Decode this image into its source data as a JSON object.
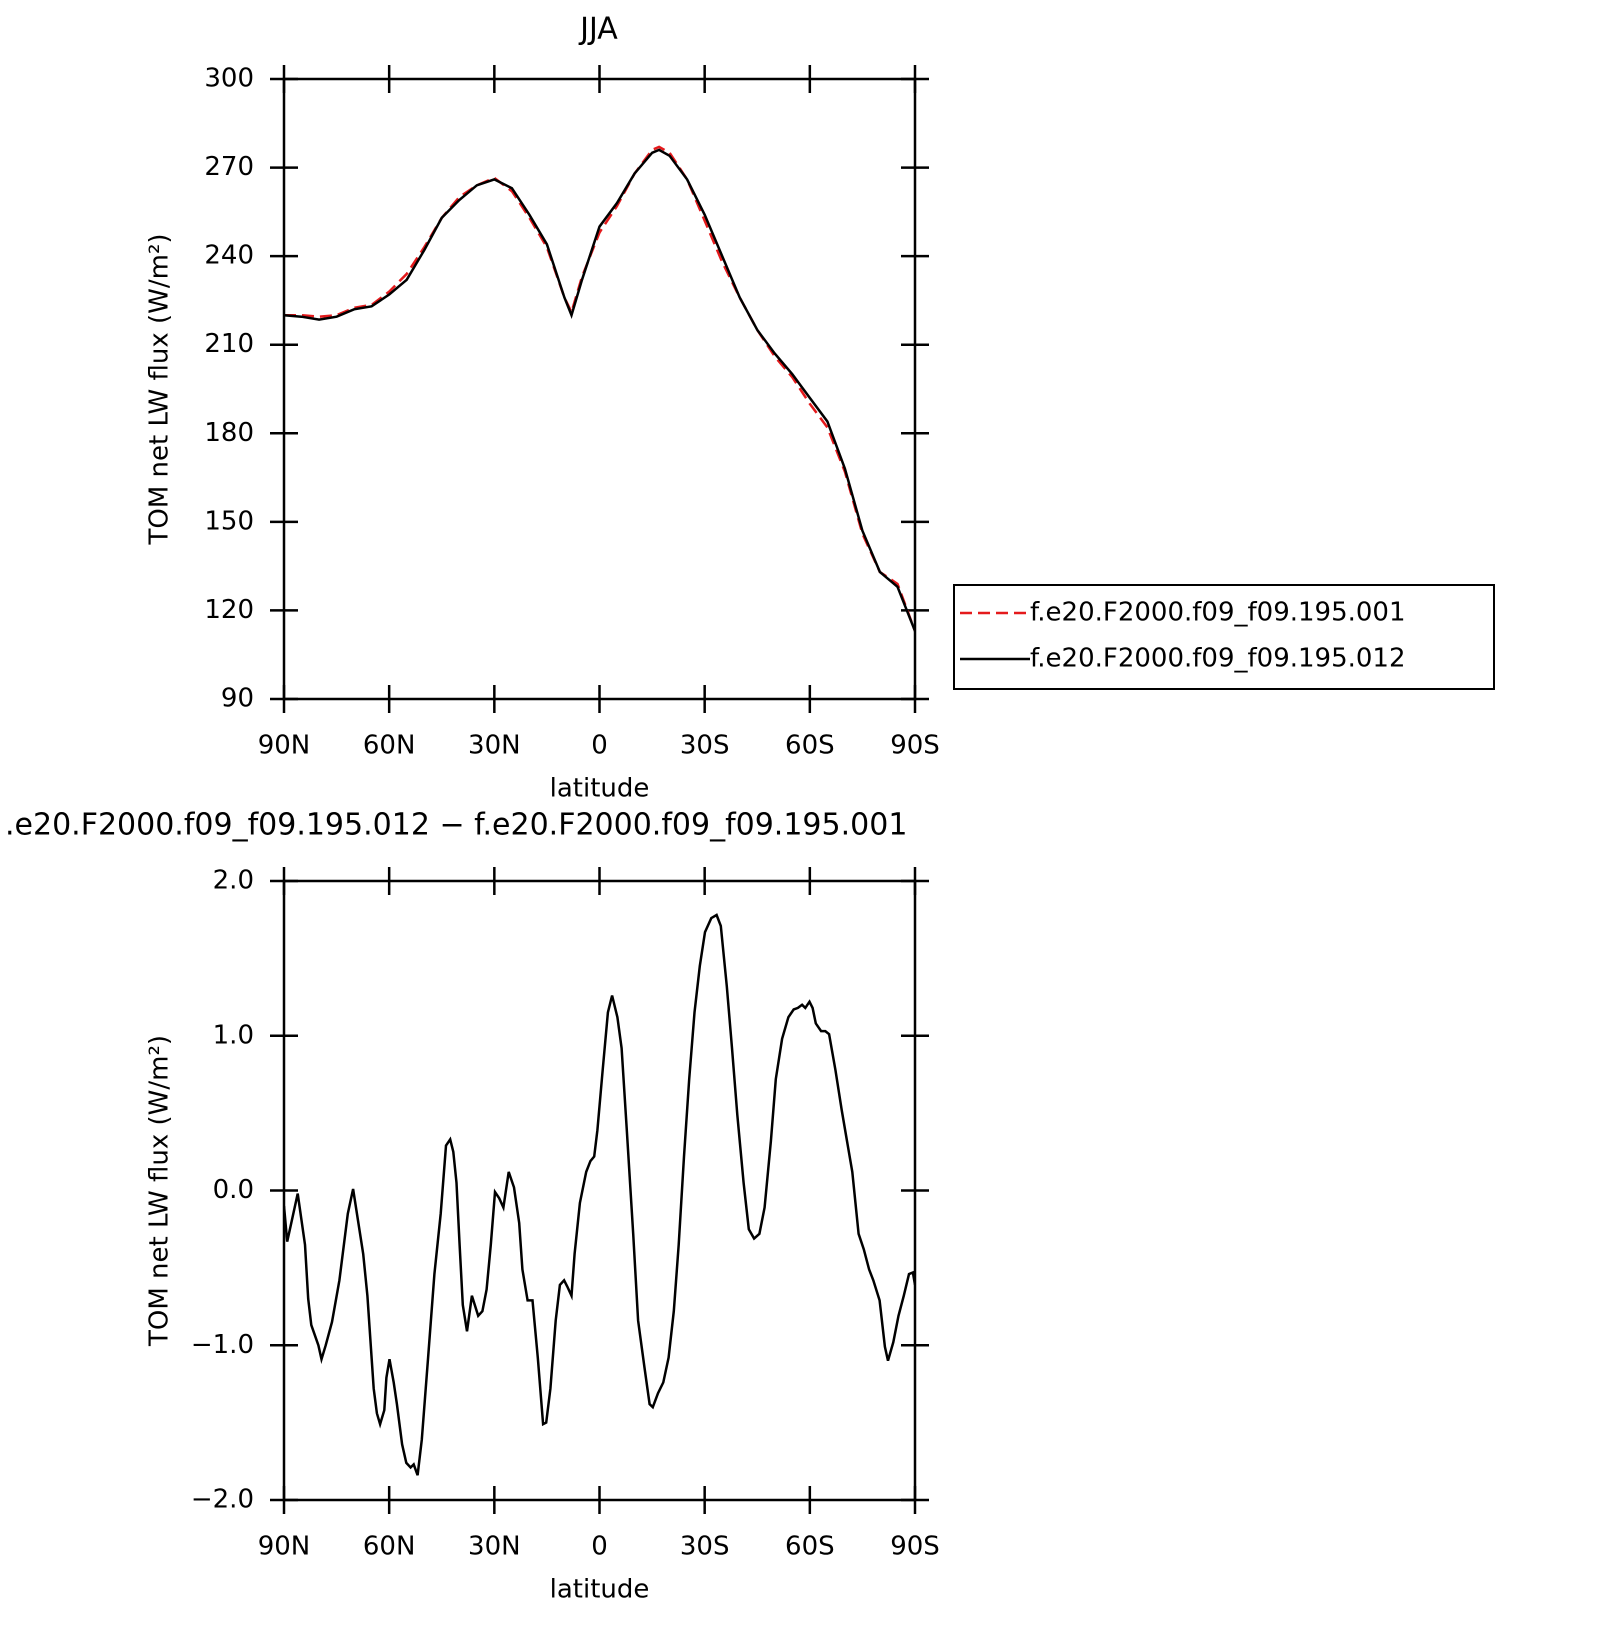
{
  "chart_data": [
    {
      "type": "line",
      "title": "JJA",
      "xlabel": "latitude",
      "ylabel": "TOM net LW flux (W/m²)",
      "x": [
        90,
        85,
        80,
        75,
        70,
        65,
        60,
        55,
        50,
        45,
        40,
        35,
        30,
        25,
        20,
        15,
        10,
        8,
        5,
        0,
        -5,
        -10,
        -15,
        -17,
        -20,
        -25,
        -30,
        -35,
        -40,
        -45,
        -50,
        -55,
        -60,
        -65,
        -70,
        -75,
        -80,
        -85,
        -90
      ],
      "series": [
        {
          "name": "f.e20.F2000.f09_f09.195.001",
          "color": "#e41a1c",
          "linestyle": "dashed",
          "values": [
            220,
            220,
            219.5,
            220,
            222.5,
            223.5,
            228,
            234,
            243,
            253,
            260,
            264,
            266.5,
            262,
            253,
            243,
            226,
            221,
            233,
            248,
            257,
            268,
            276,
            277,
            275,
            266,
            252,
            238,
            226,
            215,
            206,
            199,
            190,
            182,
            167,
            146,
            133,
            129,
            113
          ]
        },
        {
          "name": "f.e20.F2000.f09_f09.195.012",
          "color": "#000000",
          "linestyle": "solid",
          "values": [
            220,
            219.5,
            218.5,
            219.5,
            222,
            223,
            227,
            232,
            242,
            253,
            259,
            264,
            266,
            263,
            254,
            244,
            226,
            220,
            232,
            250,
            258,
            268,
            275,
            276,
            274,
            266,
            254,
            240,
            226,
            215,
            207,
            200,
            192,
            184,
            168,
            147,
            133,
            128,
            113
          ]
        }
      ],
      "xlim": [
        90,
        -90
      ],
      "xticks": [
        {
          "value": 90,
          "label": "90N"
        },
        {
          "value": 60,
          "label": "60N"
        },
        {
          "value": 30,
          "label": "30N"
        },
        0,
        {
          "value": -30,
          "label": "30S"
        },
        {
          "value": -60,
          "label": "60S"
        },
        {
          "value": -90,
          "label": "90S"
        }
      ],
      "ylim": [
        90,
        300
      ],
      "yticks": [
        90,
        120,
        150,
        180,
        210,
        240,
        270,
        300
      ],
      "legend": "right"
    },
    {
      "type": "line",
      "title": ".e20.F2000.f09_f09.195.012 − f.e20.F2000.f09_f09.195.001",
      "xlabel": "latitude",
      "ylabel": "TOM net LW flux (W/m²)",
      "x": [
        90,
        89.1,
        86.1,
        84.0,
        83.1,
        82.2,
        80.2,
        79.3,
        78.1,
        76.3,
        74.2,
        71.8,
        70.3,
        67.4,
        66.2,
        64.4,
        63.5,
        62.6,
        61.4,
        60.8,
        59.9,
        58.7,
        57.8,
        56.3,
        55.1,
        53.9,
        53.0,
        51.9,
        50.7,
        48.9,
        47.1,
        45.3,
        43.8,
        42.6,
        41.7,
        40.8,
        39.9,
        39.0,
        37.8,
        36.4,
        34.6,
        33.4,
        32.2,
        31.0,
        29.8,
        28.6,
        27.4,
        25.9,
        24.4,
        22.9,
        22.0,
        20.5,
        19.1,
        17.6,
        16.1,
        15.2,
        14.0,
        12.5,
        11.3,
        10.1,
        9.2,
        8.0,
        7.1,
        5.6,
        3.8,
        2.6,
        1.5,
        0.6,
        -0.9,
        -2.4,
        -3.6,
        -5.1,
        -6.3,
        -7.8,
        -9.6,
        -11.0,
        -12.8,
        -14.3,
        -15.2,
        -16.7,
        -18.2,
        -19.7,
        -21.2,
        -22.6,
        -24.1,
        -25.6,
        -27.1,
        -28.6,
        -30.1,
        -31.9,
        -33.4,
        -34.6,
        -36.3,
        -37.8,
        -39.3,
        -41.1,
        -42.6,
        -44.1,
        -45.6,
        -47.1,
        -48.9,
        -50.3,
        -52.1,
        -53.9,
        -55.4,
        -56.6,
        -57.8,
        -58.7,
        -59.9,
        -60.8,
        -61.7,
        -63.2,
        -64.4,
        -65.5,
        -67.3,
        -69.1,
        -70.6,
        -72.1,
        -73.9,
        -75.4,
        -76.9,
        -78.1,
        -79.9,
        -81.4,
        -82.3,
        -83.8,
        -85.3,
        -86.8,
        -88.3,
        -89.4,
        -90
      ],
      "series": [
        {
          "color": "#000000",
          "linestyle": "solid",
          "values": [
            -0.1,
            -0.33,
            -0.02,
            -0.35,
            -0.7,
            -0.87,
            -1.0,
            -1.09,
            -1.0,
            -0.85,
            -0.58,
            -0.15,
            0.01,
            -0.41,
            -0.68,
            -1.28,
            -1.44,
            -1.51,
            -1.42,
            -1.21,
            -1.09,
            -1.24,
            -1.38,
            -1.64,
            -1.76,
            -1.79,
            -1.77,
            -1.84,
            -1.61,
            -1.08,
            -0.54,
            -0.15,
            0.29,
            0.33,
            0.25,
            0.05,
            -0.35,
            -0.74,
            -0.91,
            -0.68,
            -0.81,
            -0.78,
            -0.64,
            -0.35,
            -0.01,
            -0.05,
            -0.11,
            0.12,
            0.02,
            -0.21,
            -0.51,
            -0.71,
            -0.71,
            -1.08,
            -1.51,
            -1.5,
            -1.28,
            -0.84,
            -0.61,
            -0.58,
            -0.62,
            -0.68,
            -0.41,
            -0.08,
            0.12,
            0.19,
            0.22,
            0.39,
            0.78,
            1.15,
            1.26,
            1.12,
            0.92,
            0.39,
            -0.28,
            -0.84,
            -1.14,
            -1.38,
            -1.4,
            -1.31,
            -1.24,
            -1.08,
            -0.78,
            -0.35,
            0.22,
            0.72,
            1.15,
            1.45,
            1.67,
            1.76,
            1.78,
            1.71,
            1.32,
            0.92,
            0.49,
            0.05,
            -0.25,
            -0.31,
            -0.28,
            -0.11,
            0.32,
            0.72,
            0.98,
            1.12,
            1.17,
            1.18,
            1.2,
            1.18,
            1.22,
            1.18,
            1.08,
            1.03,
            1.03,
            1.01,
            0.78,
            0.52,
            0.32,
            0.12,
            -0.28,
            -0.38,
            -0.51,
            -0.58,
            -0.71,
            -1.01,
            -1.1,
            -0.98,
            -0.81,
            -0.68,
            -0.54,
            -0.53,
            -0.61
          ]
        }
      ],
      "xlim": [
        90,
        -90
      ],
      "xticks": [
        {
          "value": 90,
          "label": "90N"
        },
        {
          "value": 60,
          "label": "60N"
        },
        {
          "value": 30,
          "label": "30N"
        },
        0,
        {
          "value": -30,
          "label": "30S"
        },
        {
          "value": -60,
          "label": "60S"
        },
        {
          "value": -90,
          "label": "90S"
        }
      ],
      "ylim": [
        -2.0,
        2.0
      ],
      "yticks": [
        {
          "value": -2.0,
          "label": "−2.0"
        },
        {
          "value": -1.0,
          "label": "−1.0"
        },
        {
          "value": 0.0,
          "label": "0.0"
        },
        {
          "value": 1.0,
          "label": "1.0"
        },
        {
          "value": 2.0,
          "label": "2.0"
        }
      ]
    }
  ]
}
